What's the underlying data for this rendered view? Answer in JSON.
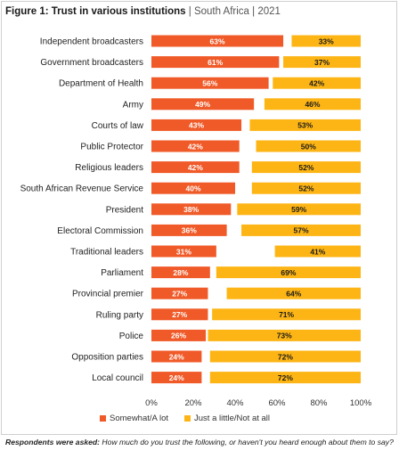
{
  "figure": {
    "title_bold": "Figure 1: Trust in various institutions",
    "title_light": " | South Africa | 2021"
  },
  "chart_data": {
    "type": "bar",
    "orientation": "horizontal",
    "stacked": true,
    "categories": [
      "Independent broadcasters",
      "Government broadcasters",
      "Department of Health",
      "Army",
      "Courts of law",
      "Public Protector",
      "Religious leaders",
      "South African Revenue Service",
      "President",
      "Electoral Commission",
      "Traditional leaders",
      "Parliament",
      "Provincial premier",
      "Ruling party",
      "Police",
      "Opposition parties",
      "Local council"
    ],
    "series": [
      {
        "name": "Somewhat/A lot",
        "color": "#f05a28",
        "values": [
          63,
          61,
          56,
          49,
          43,
          42,
          42,
          40,
          38,
          36,
          31,
          28,
          27,
          27,
          26,
          24,
          24
        ],
        "labels": [
          "63%",
          "61%",
          "56%",
          "49%",
          "43%",
          "42%",
          "42%",
          "40%",
          "38%",
          "36%",
          "31%",
          "28%",
          "27%",
          "27%",
          "26%",
          "24%",
          "24%"
        ]
      },
      {
        "name": "Just a little/Not at all",
        "color": "#fdb515",
        "values": [
          33,
          37,
          42,
          46,
          53,
          50,
          52,
          52,
          59,
          57,
          41,
          69,
          64,
          71,
          73,
          72,
          72
        ],
        "labels": [
          "33%",
          "37%",
          "42%",
          "46%",
          "53%",
          "50%",
          "52%",
          "52%",
          "59%",
          "57%",
          "41%",
          "69%",
          "64%",
          "71%",
          "73%",
          "72%",
          "72%"
        ]
      }
    ],
    "xlim": [
      0,
      100
    ],
    "x_ticks": [
      "0%",
      "20%",
      "40%",
      "60%",
      "80%",
      "100%"
    ],
    "legend_position": "bottom",
    "grid": false
  },
  "footnote": {
    "label": "Respondents were asked:",
    "text": " How much do you trust the following, or haven't you heard enough about them to say?"
  }
}
